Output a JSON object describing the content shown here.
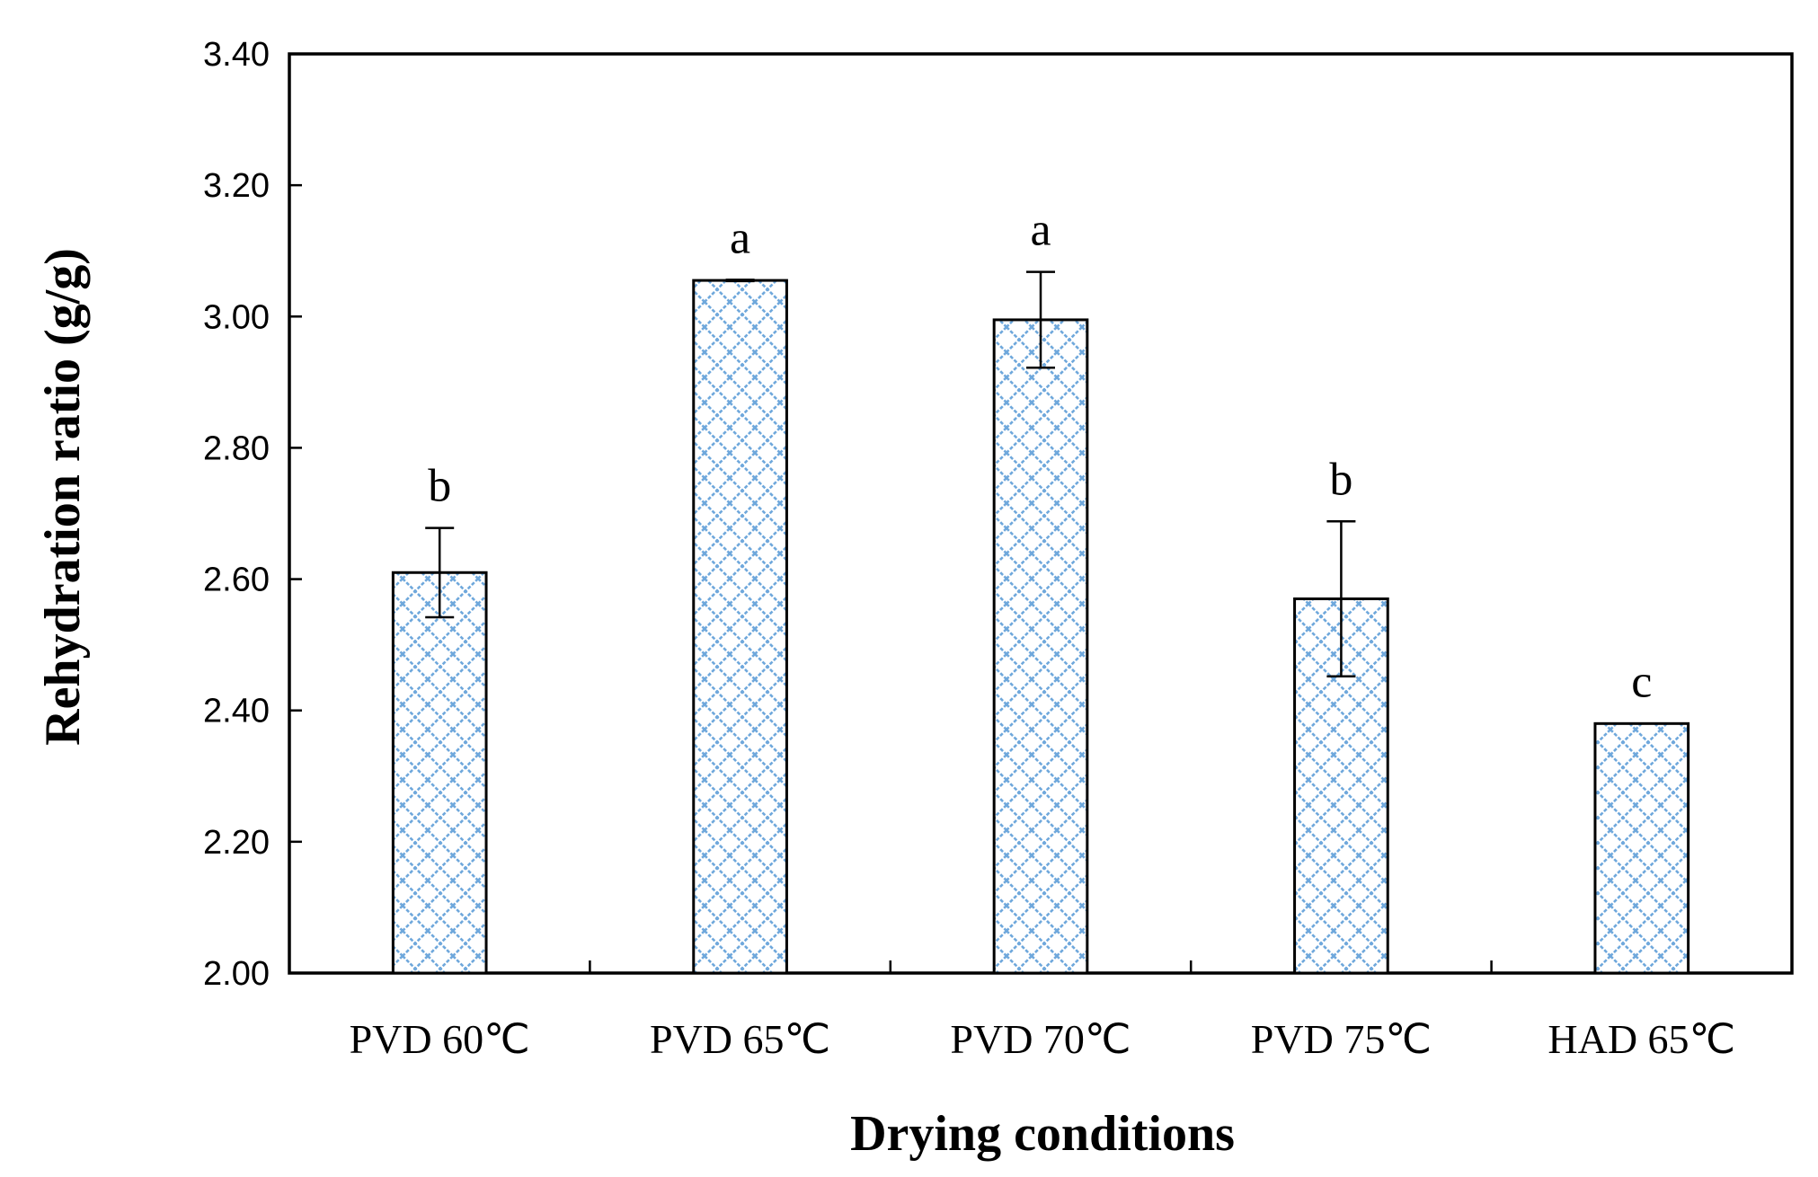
{
  "chart_data": {
    "type": "bar",
    "title": "",
    "xlabel": "Drying conditions",
    "ylabel": "Rehydration ratio (g/g)",
    "ylim": [
      2.0,
      3.4
    ],
    "yticks": [
      "2.00",
      "2.20",
      "2.40",
      "2.60",
      "2.80",
      "3.00",
      "3.20",
      "3.40"
    ],
    "ytick_values": [
      2.0,
      2.2,
      2.4,
      2.6,
      2.8,
      3.0,
      3.2,
      3.4
    ],
    "categories": [
      "PVD 60℃",
      "PVD 65℃",
      "PVD 70℃",
      "PVD 75℃",
      "HAD 65℃"
    ],
    "values": [
      2.61,
      3.055,
      2.995,
      2.57,
      2.38
    ],
    "errors": [
      0.068,
      0.001,
      0.073,
      0.118,
      0.0
    ],
    "significance": [
      "b",
      "a",
      "a",
      "b",
      "c"
    ],
    "grid": false,
    "bar_fill_pattern": "crosshatch",
    "colors": {
      "bar_hatch": "#6fa8dc",
      "bar_edge": "#000000",
      "axis": "#000000"
    }
  }
}
